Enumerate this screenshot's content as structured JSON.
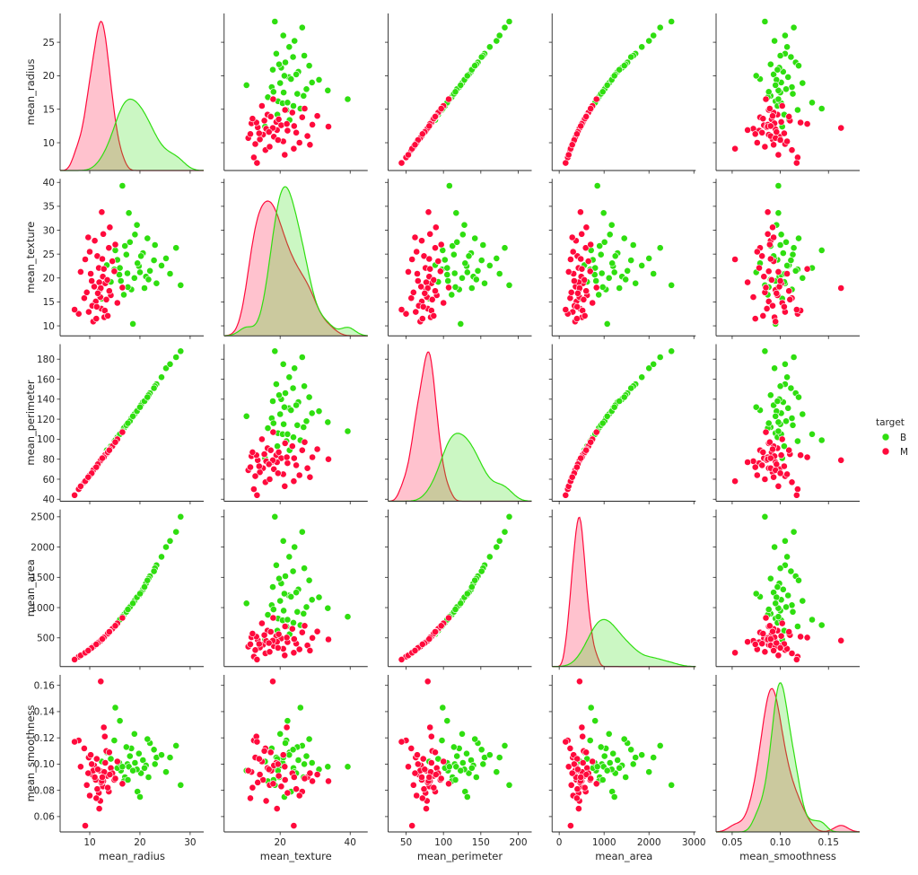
{
  "chart_data": {
    "type": "scatter",
    "subtype": "pairplot",
    "diagonal": "kde",
    "variables": [
      {
        "name": "mean_radius",
        "lim_x": [
          4.1,
          32.7
        ],
        "lim_y": [
          5.85,
          29.3
        ],
        "xticks": [
          {
            "v": 10,
            "l": "10"
          },
          {
            "v": 20,
            "l": "20"
          },
          {
            "v": 30,
            "l": "30"
          }
        ],
        "yticks": [
          {
            "v": 10,
            "l": "10"
          },
          {
            "v": 15,
            "l": "15"
          },
          {
            "v": 20,
            "l": "20"
          },
          {
            "v": 25,
            "l": "25"
          }
        ]
      },
      {
        "name": "mean_texture",
        "lim_x": [
          4,
          45
        ],
        "lim_y": [
          7.9,
          40.75
        ],
        "xticks": [
          {
            "v": 20,
            "l": "20"
          },
          {
            "v": 40,
            "l": "40"
          }
        ],
        "yticks": [
          {
            "v": 10,
            "l": "10"
          },
          {
            "v": 15,
            "l": "15"
          },
          {
            "v": 20,
            "l": "20"
          },
          {
            "v": 25,
            "l": "25"
          },
          {
            "v": 30,
            "l": "30"
          },
          {
            "v": 35,
            "l": "35"
          },
          {
            "v": 40,
            "l": "40"
          }
        ]
      },
      {
        "name": "mean_perimeter",
        "lim_x": [
          26,
          218
        ],
        "lim_y": [
          38,
          195
        ],
        "xticks": [
          {
            "v": 50,
            "l": "50"
          },
          {
            "v": 100,
            "l": "100"
          },
          {
            "v": 150,
            "l": "150"
          },
          {
            "v": 200,
            "l": "200"
          }
        ],
        "yticks": [
          {
            "v": 40,
            "l": "40"
          },
          {
            "v": 60,
            "l": "60"
          },
          {
            "v": 80,
            "l": "80"
          },
          {
            "v": 100,
            "l": "100"
          },
          {
            "v": 120,
            "l": "120"
          },
          {
            "v": 140,
            "l": "140"
          },
          {
            "v": 160,
            "l": "160"
          },
          {
            "v": 180,
            "l": "180"
          }
        ]
      },
      {
        "name": "mean_area",
        "lim_x": [
          -158,
          3040
        ],
        "lim_y": [
          26,
          2620
        ],
        "xticks": [
          {
            "v": 0,
            "l": "0"
          },
          {
            "v": 1000,
            "l": "1000"
          },
          {
            "v": 2000,
            "l": "2000"
          },
          {
            "v": 3000,
            "l": "3000"
          }
        ],
        "yticks": [
          {
            "v": 500,
            "l": "500"
          },
          {
            "v": 1000,
            "l": "1000"
          },
          {
            "v": 1500,
            "l": "1500"
          },
          {
            "v": 2000,
            "l": "2000"
          },
          {
            "v": 2500,
            "l": "2500"
          }
        ]
      },
      {
        "name": "mean_smoothness",
        "lim_x": [
          0.0333,
          0.1824
        ],
        "lim_y": [
          0.0483,
          0.168
        ],
        "xticks": [
          {
            "v": 0.05,
            "l": "0.05"
          },
          {
            "v": 0.1,
            "l": "0.10"
          },
          {
            "v": 0.15,
            "l": "0.15"
          }
        ],
        "yticks": [
          {
            "v": 0.06,
            "l": "0.06"
          },
          {
            "v": 0.08,
            "l": "0.08"
          },
          {
            "v": 0.1,
            "l": "0.10"
          },
          {
            "v": 0.12,
            "l": "0.12"
          },
          {
            "v": 0.14,
            "l": "0.14"
          },
          {
            "v": 0.16,
            "l": "0.16"
          }
        ]
      }
    ],
    "legend": {
      "title": "target",
      "placement": "right"
    },
    "series": [
      {
        "name": "B",
        "color": "#2fde10",
        "points": [
          [
            17.5,
            21.0,
            115,
            950,
            0.1
          ],
          [
            19.8,
            22.5,
            131,
            1200,
            0.108
          ],
          [
            16.2,
            19.4,
            106,
            820,
            0.095
          ],
          [
            20.6,
            25.2,
            137,
            1300,
            0.103
          ],
          [
            18.3,
            17.6,
            121,
            1040,
            0.112
          ],
          [
            15.5,
            23.8,
            102,
            750,
            0.097
          ],
          [
            21.2,
            20.3,
            140,
            1400,
            0.099
          ],
          [
            17.0,
            26.7,
            112,
            900,
            0.09
          ],
          [
            23.3,
            18.9,
            155,
            1700,
            0.105
          ],
          [
            14.9,
            21.8,
            98,
            690,
            0.118
          ],
          [
            19.0,
            29.1,
            126,
            1130,
            0.101
          ],
          [
            16.8,
            16.5,
            111,
            880,
            0.087
          ],
          [
            25.2,
            24.1,
            171,
            2000,
            0.094
          ],
          [
            18.9,
            20.0,
            125,
            1110,
            0.123
          ],
          [
            13.4,
            22.7,
            89,
            560,
            0.109
          ],
          [
            20.2,
            24.6,
            134,
            1250,
            0.093
          ],
          [
            22.0,
            21.5,
            146,
            1520,
            0.116
          ],
          [
            17.8,
            33.6,
            117,
            990,
            0.098
          ],
          [
            28.1,
            18.5,
            188,
            2500,
            0.084
          ],
          [
            15.9,
            20.7,
            105,
            790,
            0.101
          ],
          [
            19.5,
            23.1,
            129,
            1180,
            0.079
          ],
          [
            27.2,
            26.3,
            182,
            2250,
            0.114
          ],
          [
            14.2,
            19.2,
            93,
            620,
            0.104
          ],
          [
            18.0,
            27.5,
            118,
            1010,
            0.106
          ],
          [
            24.3,
            22.6,
            162,
            1840,
            0.107
          ],
          [
            16.5,
            39.3,
            108,
            850,
            0.098
          ],
          [
            21.7,
            19.7,
            144,
            1480,
            0.09
          ],
          [
            17.3,
            24.9,
            114,
            930,
            0.113
          ],
          [
            20.9,
            17.9,
            138,
            1340,
            0.097
          ],
          [
            12.4,
            15.7,
            81,
            470,
            0.102
          ],
          [
            19.4,
            31.1,
            128,
            1170,
            0.096
          ],
          [
            16.0,
            22.1,
            105,
            800,
            0.133
          ],
          [
            23.0,
            26.9,
            153,
            1650,
            0.1
          ],
          [
            18.6,
            10.4,
            123,
            1070,
            0.095
          ],
          [
            15.1,
            25.8,
            99,
            710,
            0.143
          ],
          [
            20.0,
            21.2,
            132,
            1230,
            0.075
          ],
          [
            22.8,
            23.7,
            151,
            1600,
            0.111
          ],
          [
            17.6,
            18.1,
            116,
            970,
            0.088
          ],
          [
            26.0,
            20.9,
            175,
            2100,
            0.105
          ],
          [
            21.5,
            28.3,
            142,
            1450,
            0.119
          ]
        ]
      },
      {
        "name": "M",
        "color": "#ff0a3c",
        "points": [
          [
            12.0,
            17.5,
            77,
            440,
            0.095
          ],
          [
            11.2,
            15.1,
            71,
            385,
            0.088
          ],
          [
            13.1,
            18.9,
            84,
            530,
            0.101
          ],
          [
            10.5,
            14.2,
            67,
            340,
            0.092
          ],
          [
            12.6,
            20.3,
            81,
            490,
            0.083
          ],
          [
            9.8,
            12.9,
            63,
            300,
            0.105
          ],
          [
            14.2,
            16.4,
            91,
            620,
            0.097
          ],
          [
            11.8,
            22.1,
            76,
            430,
            0.078
          ],
          [
            13.5,
            19.6,
            87,
            560,
            0.091
          ],
          [
            8.9,
            15.8,
            57,
            245,
            0.112
          ],
          [
            12.3,
            13.6,
            79,
            465,
            0.086
          ],
          [
            10.9,
            18.2,
            70,
            365,
            0.099
          ],
          [
            14.9,
            21.4,
            96,
            690,
            0.088
          ],
          [
            11.5,
            24.6,
            74,
            405,
            0.081
          ],
          [
            12.9,
            11.8,
            83,
            510,
            0.094
          ],
          [
            7.8,
            12.5,
            50,
            190,
            0.118
          ],
          [
            13.8,
            26.3,
            89,
            590,
            0.079
          ],
          [
            10.2,
            20.9,
            65,
            320,
            0.107
          ],
          [
            12.1,
            16.0,
            78,
            450,
            0.072
          ],
          [
            15.5,
            14.8,
            100,
            740,
            0.102
          ],
          [
            11.0,
            27.8,
            71,
            375,
            0.09
          ],
          [
            9.4,
            17.0,
            60,
            270,
            0.084
          ],
          [
            13.3,
            15.5,
            85,
            545,
            0.11
          ],
          [
            12.7,
            29.2,
            82,
            500,
            0.087
          ],
          [
            10.7,
            10.9,
            69,
            355,
            0.095
          ],
          [
            14.5,
            23.5,
            93,
            650,
            0.093
          ],
          [
            11.9,
            19.1,
            77,
            435,
            0.066
          ],
          [
            8.2,
            21.3,
            53,
            210,
            0.098
          ],
          [
            13.0,
            13.2,
            84,
            520,
            0.121
          ],
          [
            12.4,
            33.8,
            80,
            475,
            0.087
          ],
          [
            16.5,
            18.0,
            107,
            830,
            0.085
          ],
          [
            10.0,
            25.5,
            64,
            310,
            0.076
          ],
          [
            11.4,
            14.0,
            73,
            400,
            0.104
          ],
          [
            6.98,
            13.4,
            44,
            143,
            0.117
          ],
          [
            12.2,
            17.9,
            79,
            455,
            0.163
          ],
          [
            14.0,
            30.6,
            90,
            605,
            0.092
          ],
          [
            9.1,
            23.9,
            58,
            255,
            0.053
          ],
          [
            13.6,
            12.1,
            87,
            570,
            0.082
          ],
          [
            11.6,
            16.8,
            75,
            415,
            0.096
          ],
          [
            12.8,
            21.9,
            82,
            505,
            0.128
          ],
          [
            15.1,
            27.0,
            97,
            700,
            0.089
          ],
          [
            10.4,
            19.4,
            66,
            335,
            0.1
          ],
          [
            11.3,
            11.5,
            72,
            395,
            0.074
          ],
          [
            13.9,
            17.3,
            89,
            600,
            0.109
          ],
          [
            12.5,
            24.0,
            81,
            480,
            0.09
          ],
          [
            9.7,
            28.5,
            62,
            290,
            0.093
          ]
        ]
      }
    ]
  }
}
